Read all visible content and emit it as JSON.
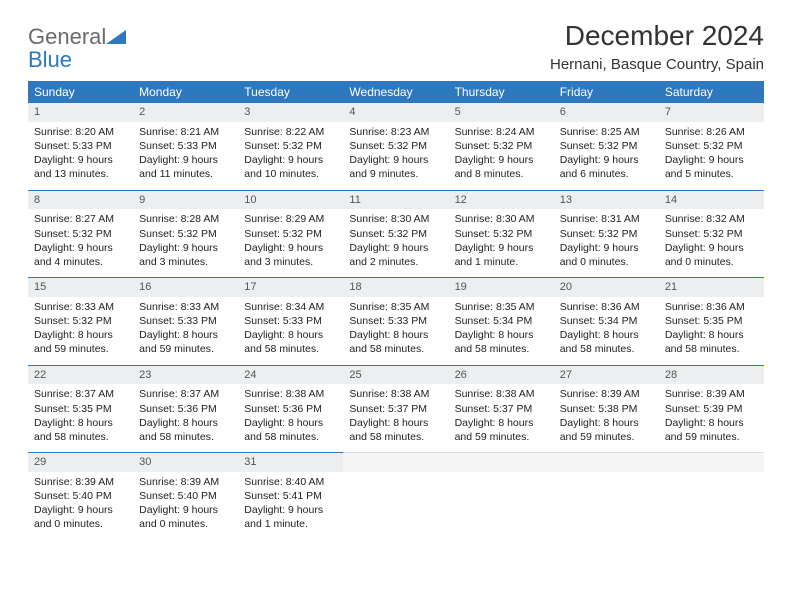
{
  "logo": {
    "general": "General",
    "blue": "Blue"
  },
  "header": {
    "title": "December 2024",
    "location": "Hernani, Basque Country, Spain"
  },
  "colors": {
    "header_bg": "#2e78c0",
    "header_fg": "#ffffff",
    "daynum_bg": "#eceeef",
    "row_border": "#2e78c0",
    "logo_gray": "#6b6b6b",
    "logo_blue": "#2e78c0"
  },
  "weekdays": [
    "Sunday",
    "Monday",
    "Tuesday",
    "Wednesday",
    "Thursday",
    "Friday",
    "Saturday"
  ],
  "layout": {
    "cols": 7,
    "rows": 5
  },
  "days": [
    {
      "n": 1,
      "sr": "8:20 AM",
      "ss": "5:33 PM",
      "dl": "9 hours and 13 minutes."
    },
    {
      "n": 2,
      "sr": "8:21 AM",
      "ss": "5:33 PM",
      "dl": "9 hours and 11 minutes."
    },
    {
      "n": 3,
      "sr": "8:22 AM",
      "ss": "5:32 PM",
      "dl": "9 hours and 10 minutes."
    },
    {
      "n": 4,
      "sr": "8:23 AM",
      "ss": "5:32 PM",
      "dl": "9 hours and 9 minutes."
    },
    {
      "n": 5,
      "sr": "8:24 AM",
      "ss": "5:32 PM",
      "dl": "9 hours and 8 minutes."
    },
    {
      "n": 6,
      "sr": "8:25 AM",
      "ss": "5:32 PM",
      "dl": "9 hours and 6 minutes."
    },
    {
      "n": 7,
      "sr": "8:26 AM",
      "ss": "5:32 PM",
      "dl": "9 hours and 5 minutes."
    },
    {
      "n": 8,
      "sr": "8:27 AM",
      "ss": "5:32 PM",
      "dl": "9 hours and 4 minutes."
    },
    {
      "n": 9,
      "sr": "8:28 AM",
      "ss": "5:32 PM",
      "dl": "9 hours and 3 minutes."
    },
    {
      "n": 10,
      "sr": "8:29 AM",
      "ss": "5:32 PM",
      "dl": "9 hours and 3 minutes."
    },
    {
      "n": 11,
      "sr": "8:30 AM",
      "ss": "5:32 PM",
      "dl": "9 hours and 2 minutes."
    },
    {
      "n": 12,
      "sr": "8:30 AM",
      "ss": "5:32 PM",
      "dl": "9 hours and 1 minute."
    },
    {
      "n": 13,
      "sr": "8:31 AM",
      "ss": "5:32 PM",
      "dl": "9 hours and 0 minutes."
    },
    {
      "n": 14,
      "sr": "8:32 AM",
      "ss": "5:32 PM",
      "dl": "9 hours and 0 minutes."
    },
    {
      "n": 15,
      "sr": "8:33 AM",
      "ss": "5:32 PM",
      "dl": "8 hours and 59 minutes."
    },
    {
      "n": 16,
      "sr": "8:33 AM",
      "ss": "5:33 PM",
      "dl": "8 hours and 59 minutes."
    },
    {
      "n": 17,
      "sr": "8:34 AM",
      "ss": "5:33 PM",
      "dl": "8 hours and 58 minutes."
    },
    {
      "n": 18,
      "sr": "8:35 AM",
      "ss": "5:33 PM",
      "dl": "8 hours and 58 minutes."
    },
    {
      "n": 19,
      "sr": "8:35 AM",
      "ss": "5:34 PM",
      "dl": "8 hours and 58 minutes."
    },
    {
      "n": 20,
      "sr": "8:36 AM",
      "ss": "5:34 PM",
      "dl": "8 hours and 58 minutes."
    },
    {
      "n": 21,
      "sr": "8:36 AM",
      "ss": "5:35 PM",
      "dl": "8 hours and 58 minutes."
    },
    {
      "n": 22,
      "sr": "8:37 AM",
      "ss": "5:35 PM",
      "dl": "8 hours and 58 minutes."
    },
    {
      "n": 23,
      "sr": "8:37 AM",
      "ss": "5:36 PM",
      "dl": "8 hours and 58 minutes."
    },
    {
      "n": 24,
      "sr": "8:38 AM",
      "ss": "5:36 PM",
      "dl": "8 hours and 58 minutes."
    },
    {
      "n": 25,
      "sr": "8:38 AM",
      "ss": "5:37 PM",
      "dl": "8 hours and 58 minutes."
    },
    {
      "n": 26,
      "sr": "8:38 AM",
      "ss": "5:37 PM",
      "dl": "8 hours and 59 minutes."
    },
    {
      "n": 27,
      "sr": "8:39 AM",
      "ss": "5:38 PM",
      "dl": "8 hours and 59 minutes."
    },
    {
      "n": 28,
      "sr": "8:39 AM",
      "ss": "5:39 PM",
      "dl": "8 hours and 59 minutes."
    },
    {
      "n": 29,
      "sr": "8:39 AM",
      "ss": "5:40 PM",
      "dl": "9 hours and 0 minutes."
    },
    {
      "n": 30,
      "sr": "8:39 AM",
      "ss": "5:40 PM",
      "dl": "9 hours and 0 minutes."
    },
    {
      "n": 31,
      "sr": "8:40 AM",
      "ss": "5:41 PM",
      "dl": "9 hours and 1 minute."
    }
  ],
  "labels": {
    "sunrise": "Sunrise: ",
    "sunset": "Sunset: ",
    "daylight": "Daylight: "
  }
}
